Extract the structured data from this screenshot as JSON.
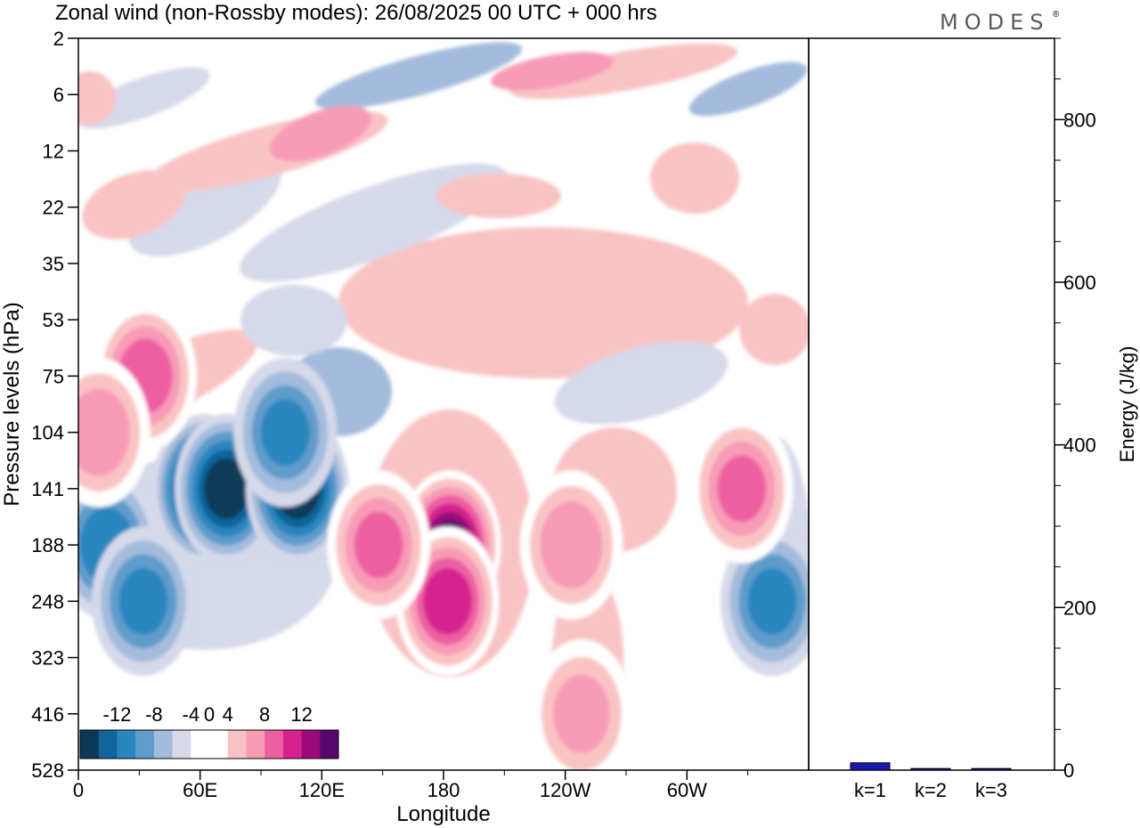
{
  "chart_data": [
    {
      "type": "heatmap",
      "title": "Zonal wind (non-Rossby modes):  26/08/2025  00 UTC  + 000 hrs",
      "xlabel": "Longitude",
      "ylabel": "Pressure levels (hPa)",
      "x_ticks": [
        "0",
        "60E",
        "120E",
        "180",
        "120W",
        "60W"
      ],
      "x_tick_degrees": [
        0,
        60,
        120,
        180,
        240,
        300
      ],
      "xlim": [
        0,
        360
      ],
      "y_ticks": [
        "2",
        "6",
        "12",
        "22",
        "35",
        "53",
        "75",
        "104",
        "141",
        "188",
        "248",
        "323",
        "416",
        "528"
      ],
      "colorbar": {
        "tick_labels": [
          "-12",
          "-8",
          "-4",
          "0",
          "4",
          "8",
          "12"
        ],
        "levels": [
          -14,
          -12,
          -10,
          -8,
          -6,
          -4,
          -2,
          2,
          4,
          6,
          8,
          10,
          12,
          14
        ],
        "colors": [
          "#0b3a58",
          "#11659a",
          "#2a86bf",
          "#5f9bcb",
          "#a4bcdc",
          "#d6d9ea",
          "#ffffff",
          "#ffffff",
          "#fac3c3",
          "#f79bb7",
          "#ee5fa2",
          "#d4238f",
          "#9a0b79",
          "#56076c"
        ]
      },
      "features": [
        {
          "lon": 62,
          "level": "141",
          "value": -14
        },
        {
          "lon": 73,
          "level": "141",
          "value": -13
        },
        {
          "lon": 108,
          "level": "141",
          "value": -13
        },
        {
          "lon": 14,
          "level": "188",
          "value": -9
        },
        {
          "lon": 32,
          "level": "248",
          "value": -8
        },
        {
          "lon": 102,
          "level": "104",
          "value": -8
        },
        {
          "lon": 342,
          "level": "248",
          "value": -8
        },
        {
          "lon": 183,
          "level": "188",
          "value": 14
        },
        {
          "lon": 182,
          "level": "248",
          "value": 11
        },
        {
          "lon": 148,
          "level": "188",
          "value": 8
        },
        {
          "lon": 243,
          "level": "188",
          "value": 7
        },
        {
          "lon": 33,
          "level": "75",
          "value": 9
        },
        {
          "lon": 10,
          "level": "104",
          "value": 7
        },
        {
          "lon": 327,
          "level": "141",
          "value": 8
        },
        {
          "lon": 248,
          "level": "416",
          "value": 6
        }
      ]
    },
    {
      "type": "bar",
      "categories": [
        "k=1",
        "k=2",
        "k=3"
      ],
      "values": [
        9,
        2,
        2
      ],
      "ylabel": "Energy (J/kg)",
      "ylim": [
        0,
        900
      ],
      "yticks": [
        "0",
        "200",
        "400",
        "600",
        "800"
      ],
      "bar_color": "#1a1ab0"
    }
  ],
  "brand": "MODES",
  "brand_mark": "®",
  "colors": {
    "bar": "#1a1ab0",
    "brand": "#5a5a5a"
  }
}
